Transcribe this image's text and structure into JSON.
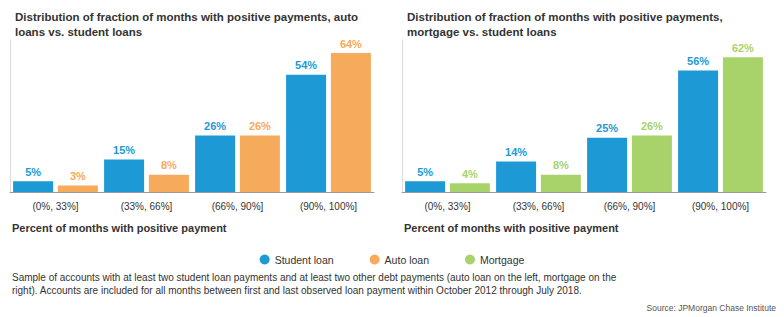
{
  "chart_data": [
    {
      "type": "bar",
      "title": "Distribution of fraction of months with positive payments, auto loans vs. student loans",
      "x_label": "Percent of months with positive payment",
      "categories": [
        "(0%, 33%]",
        "(33%, 66%]",
        "(66%, 90%]",
        "(90%, 100%]"
      ],
      "series": [
        {
          "name": "Student loan",
          "color": "#1d9ad6",
          "values": [
            5,
            15,
            26,
            54
          ],
          "value_labels": [
            "5%",
            "15%",
            "26%",
            "54%"
          ]
        },
        {
          "name": "Auto loan",
          "color": "#f6aa5b",
          "values": [
            3,
            8,
            26,
            64
          ],
          "value_labels": [
            "3%",
            "8%",
            "26%",
            "64%"
          ]
        }
      ],
      "ylim": [
        0,
        70
      ],
      "data_labels": true,
      "tick_labels": "x",
      "grid": false,
      "legend": "bottom"
    },
    {
      "type": "bar",
      "title": "Distribution of fraction of months with positive payments, mortgage vs. student loans",
      "x_label": "Percent of months with positive payment",
      "categories": [
        "(0%, 33%]",
        "(33%, 66%]",
        "(66%, 90%]",
        "(90%, 100%]"
      ],
      "series": [
        {
          "name": "Student loan",
          "color": "#1d9ad6",
          "values": [
            5,
            14,
            25,
            56
          ],
          "value_labels": [
            "5%",
            "14%",
            "25%",
            "56%"
          ]
        },
        {
          "name": "Mortgage",
          "color": "#a8d36b",
          "values": [
            4,
            8,
            26,
            62
          ],
          "value_labels": [
            "4%",
            "8%",
            "26%",
            "62%"
          ]
        }
      ],
      "ylim": [
        0,
        70
      ],
      "data_labels": true,
      "tick_labels": "x",
      "grid": false,
      "legend": "bottom"
    }
  ],
  "note": "Sample of accounts with at least two student loan payments and at least two other debt payments (auto loan on the left, mortgage on the right). Accounts are included for all months between first and last observed loan payment within October 2012 through July 2018.",
  "source": "Source: JPMorgan Chase Institute"
}
